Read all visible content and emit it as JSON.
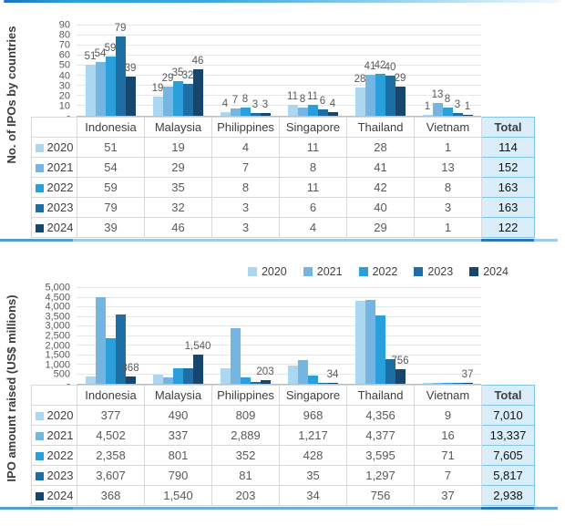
{
  "palette": {
    "2020": "#ACD7F0",
    "2021": "#74B5E1",
    "2022": "#2B9FD9",
    "2023": "#1C6EA4",
    "2024": "#16466B"
  },
  "accent": {
    "top_rule_start": "#1B75BC",
    "divider": "#9FCCE4",
    "divider_left": "#4E9FC9",
    "divider_total": "#2E78B0",
    "total_fill": "#D9EEF9",
    "total_border": "#7FC5EA"
  },
  "chart_data": [
    {
      "type": "bar",
      "ylabel": "No. of IPOs by countries",
      "categories": [
        "Indonesia",
        "Malaysia",
        "Philippines",
        "Singapore",
        "Thailand",
        "Vietnam"
      ],
      "series": [
        {
          "name": "2020",
          "values": [
            51,
            19,
            4,
            11,
            28,
            1
          ]
        },
        {
          "name": "2021",
          "values": [
            54,
            29,
            7,
            8,
            41,
            13
          ]
        },
        {
          "name": "2022",
          "values": [
            59,
            35,
            8,
            11,
            42,
            8
          ]
        },
        {
          "name": "2023",
          "values": [
            79,
            32,
            3,
            6,
            40,
            3
          ]
        },
        {
          "name": "2024",
          "values": [
            39,
            46,
            3,
            4,
            29,
            1
          ]
        }
      ],
      "ylim": [
        0,
        90
      ],
      "ytick_labels": [
        "-",
        "10",
        "20",
        "30",
        "40",
        "50",
        "60",
        "70",
        "80",
        "90"
      ],
      "grid": true,
      "legend": null,
      "legend_position": null,
      "value_labels": "all",
      "table": {
        "col_header": [
          "Indonesia",
          "Malaysia",
          "Philippines",
          "Singapore",
          "Thailand",
          "Vietnam",
          "Total"
        ],
        "rows": [
          {
            "year": "2020",
            "cells": [
              "51",
              "19",
              "4",
              "11",
              "28",
              "1"
            ],
            "total": "114"
          },
          {
            "year": "2021",
            "cells": [
              "54",
              "29",
              "7",
              "8",
              "41",
              "13"
            ],
            "total": "152"
          },
          {
            "year": "2022",
            "cells": [
              "59",
              "35",
              "8",
              "11",
              "42",
              "8"
            ],
            "total": "163"
          },
          {
            "year": "2023",
            "cells": [
              "79",
              "32",
              "3",
              "6",
              "40",
              "3"
            ],
            "total": "163"
          },
          {
            "year": "2024",
            "cells": [
              "39",
              "46",
              "3",
              "4",
              "29",
              "1"
            ],
            "total": "122"
          }
        ]
      }
    },
    {
      "type": "bar",
      "ylabel": "IPO amount raised (US$ millions)",
      "categories": [
        "Indonesia",
        "Malaysia",
        "Philippines",
        "Singapore",
        "Thailand",
        "Vietnam"
      ],
      "series": [
        {
          "name": "2020",
          "values": [
            377,
            490,
            809,
            968,
            4356,
            9
          ]
        },
        {
          "name": "2021",
          "values": [
            4502,
            337,
            2889,
            1217,
            4377,
            16
          ]
        },
        {
          "name": "2022",
          "values": [
            2358,
            801,
            352,
            428,
            3595,
            71
          ]
        },
        {
          "name": "2023",
          "values": [
            3607,
            790,
            81,
            35,
            1297,
            7
          ]
        },
        {
          "name": "2024",
          "values": [
            368,
            1540,
            203,
            34,
            756,
            37
          ],
          "labels": [
            "368",
            "1,540",
            "203",
            "34",
            "756",
            "37"
          ]
        }
      ],
      "ylim": [
        0,
        5000
      ],
      "ytick_labels": [
        "-",
        "500",
        "1,000",
        "1,500",
        "2,000",
        "2,500",
        "3,000",
        "3,500",
        "4,000",
        "4,500",
        "5,000"
      ],
      "grid": true,
      "legend": [
        "2020",
        "2021",
        "2022",
        "2023",
        "2024"
      ],
      "legend_position": "top-right",
      "value_labels": "last-series",
      "table": {
        "col_header": [
          "Indonesia",
          "Malaysia",
          "Philippines",
          "Singapore",
          "Thailand",
          "Vietnam",
          "Total"
        ],
        "rows": [
          {
            "year": "2020",
            "cells": [
              "377",
              "490",
              "809",
              "968",
              "4,356",
              "9"
            ],
            "total": "7,010"
          },
          {
            "year": "2021",
            "cells": [
              "4,502",
              "337",
              "2,889",
              "1,217",
              "4,377",
              "16"
            ],
            "total": "13,337"
          },
          {
            "year": "2022",
            "cells": [
              "2,358",
              "801",
              "352",
              "428",
              "3,595",
              "71"
            ],
            "total": "7,605"
          },
          {
            "year": "2023",
            "cells": [
              "3,607",
              "790",
              "81",
              "35",
              "1,297",
              "7"
            ],
            "total": "5,817"
          },
          {
            "year": "2024",
            "cells": [
              "368",
              "1,540",
              "203",
              "34",
              "756",
              "37"
            ],
            "total": "2,938"
          }
        ]
      }
    }
  ]
}
